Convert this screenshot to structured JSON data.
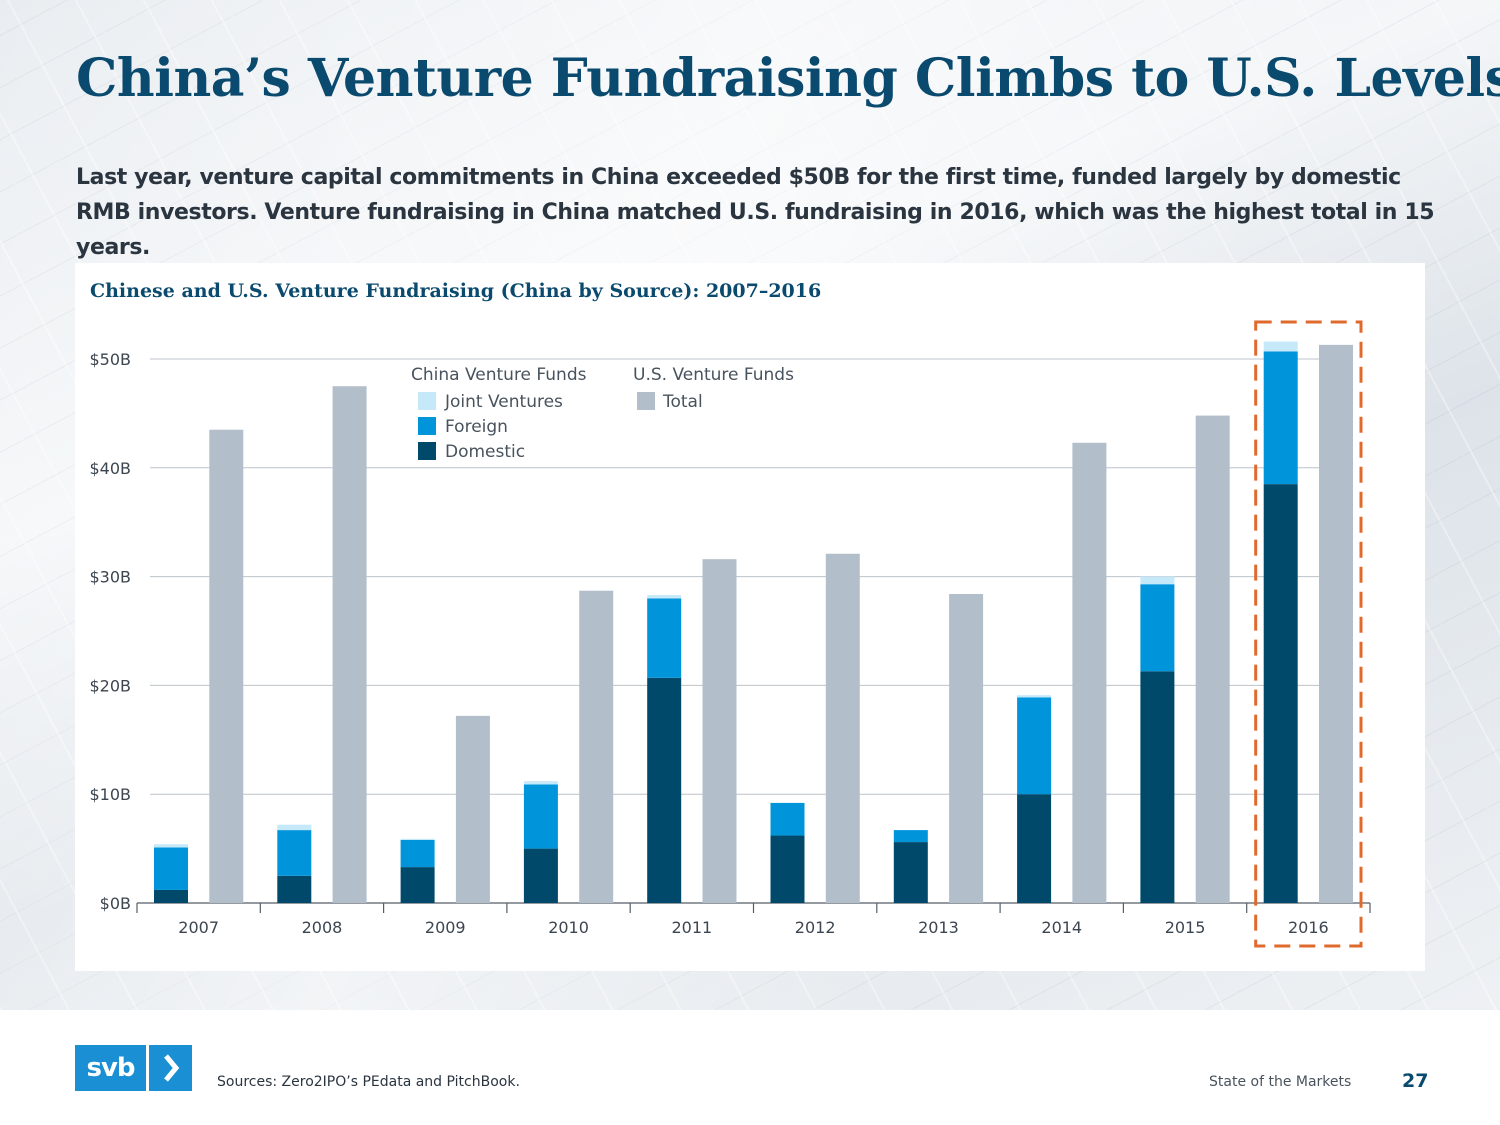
{
  "slide": {
    "title": "China’s Venture Fundraising Climbs to U.S. Levels",
    "subtitle": "Last year, venture capital commitments in China exceeded $50B for the first time, funded largely by domestic RMB investors. Venture fundraising in China matched U.S. fundraising in 2016, which was the highest total in 15 years.",
    "source": "Sources: Zero2IPO’s PEdata and PitchBook.",
    "footer_label": "State of the Markets",
    "page_number": "27",
    "logo_text": "svb"
  },
  "colors": {
    "title": "#0a4a6e",
    "domestic": "#00496b",
    "foreign": "#0095da",
    "joint_ventures": "#c6e9fa",
    "us_total": "#b2bfcb",
    "highlight": "#e06a2c",
    "logo": "#1a8fd4"
  },
  "legend": {
    "china_heading": "China Venture Funds",
    "us_heading": "U.S. Venture Funds",
    "china_items": [
      "Joint Ventures",
      "Foreign",
      "Domestic"
    ],
    "us_items": [
      "Total"
    ]
  },
  "chart_data": {
    "type": "bar",
    "title": "Chinese and U.S. Venture Fundraising (China by Source): 2007–2016",
    "categories": [
      "2007",
      "2008",
      "2009",
      "2010",
      "2011",
      "2012",
      "2013",
      "2014",
      "2015",
      "2016"
    ],
    "ylim": [
      0,
      50
    ],
    "yticks": [
      0,
      10,
      20,
      30,
      40,
      50
    ],
    "ytick_labels": [
      "$0B",
      "$10B",
      "$20B",
      "$30B",
      "$40B",
      "$50B"
    ],
    "xlabel": "",
    "ylabel": "",
    "highlight_category": "2016",
    "series": [
      {
        "name": "Domestic",
        "group": "China Venture Funds",
        "stack": "China",
        "values": [
          1.2,
          2.5,
          3.3,
          5.0,
          20.7,
          6.2,
          5.6,
          10.0,
          21.3,
          38.5
        ]
      },
      {
        "name": "Foreign",
        "group": "China Venture Funds",
        "stack": "China",
        "values": [
          3.9,
          4.2,
          2.5,
          5.9,
          7.3,
          3.0,
          1.1,
          8.9,
          8.0,
          12.2
        ]
      },
      {
        "name": "Joint Ventures",
        "group": "China Venture Funds",
        "stack": "China",
        "values": [
          0.3,
          0.5,
          0.1,
          0.3,
          0.3,
          0.0,
          0.0,
          0.2,
          0.7,
          0.9
        ]
      },
      {
        "name": "Total",
        "group": "U.S. Venture Funds",
        "stack": "US",
        "values": [
          43.5,
          47.5,
          17.2,
          28.7,
          31.6,
          32.1,
          28.4,
          42.3,
          44.8,
          51.3
        ]
      }
    ]
  }
}
